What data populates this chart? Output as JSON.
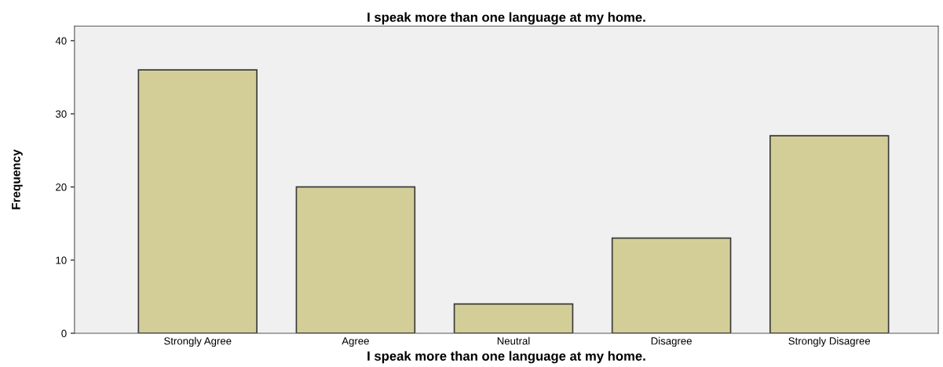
{
  "chart_data": {
    "type": "bar",
    "title": "I speak more than one language at my home.",
    "xlabel": "I speak more than one language at my home.",
    "ylabel": "Frequency",
    "categories": [
      "Strongly Agree",
      "Agree",
      "Neutral",
      "Disagree",
      "Strongly Disagree"
    ],
    "values": [
      36,
      20,
      4,
      13,
      27
    ],
    "color": "#d3ce97",
    "ylim": [
      0,
      42
    ],
    "yticks": [
      0,
      10,
      20,
      30,
      40
    ],
    "grid": false,
    "legend": false
  }
}
